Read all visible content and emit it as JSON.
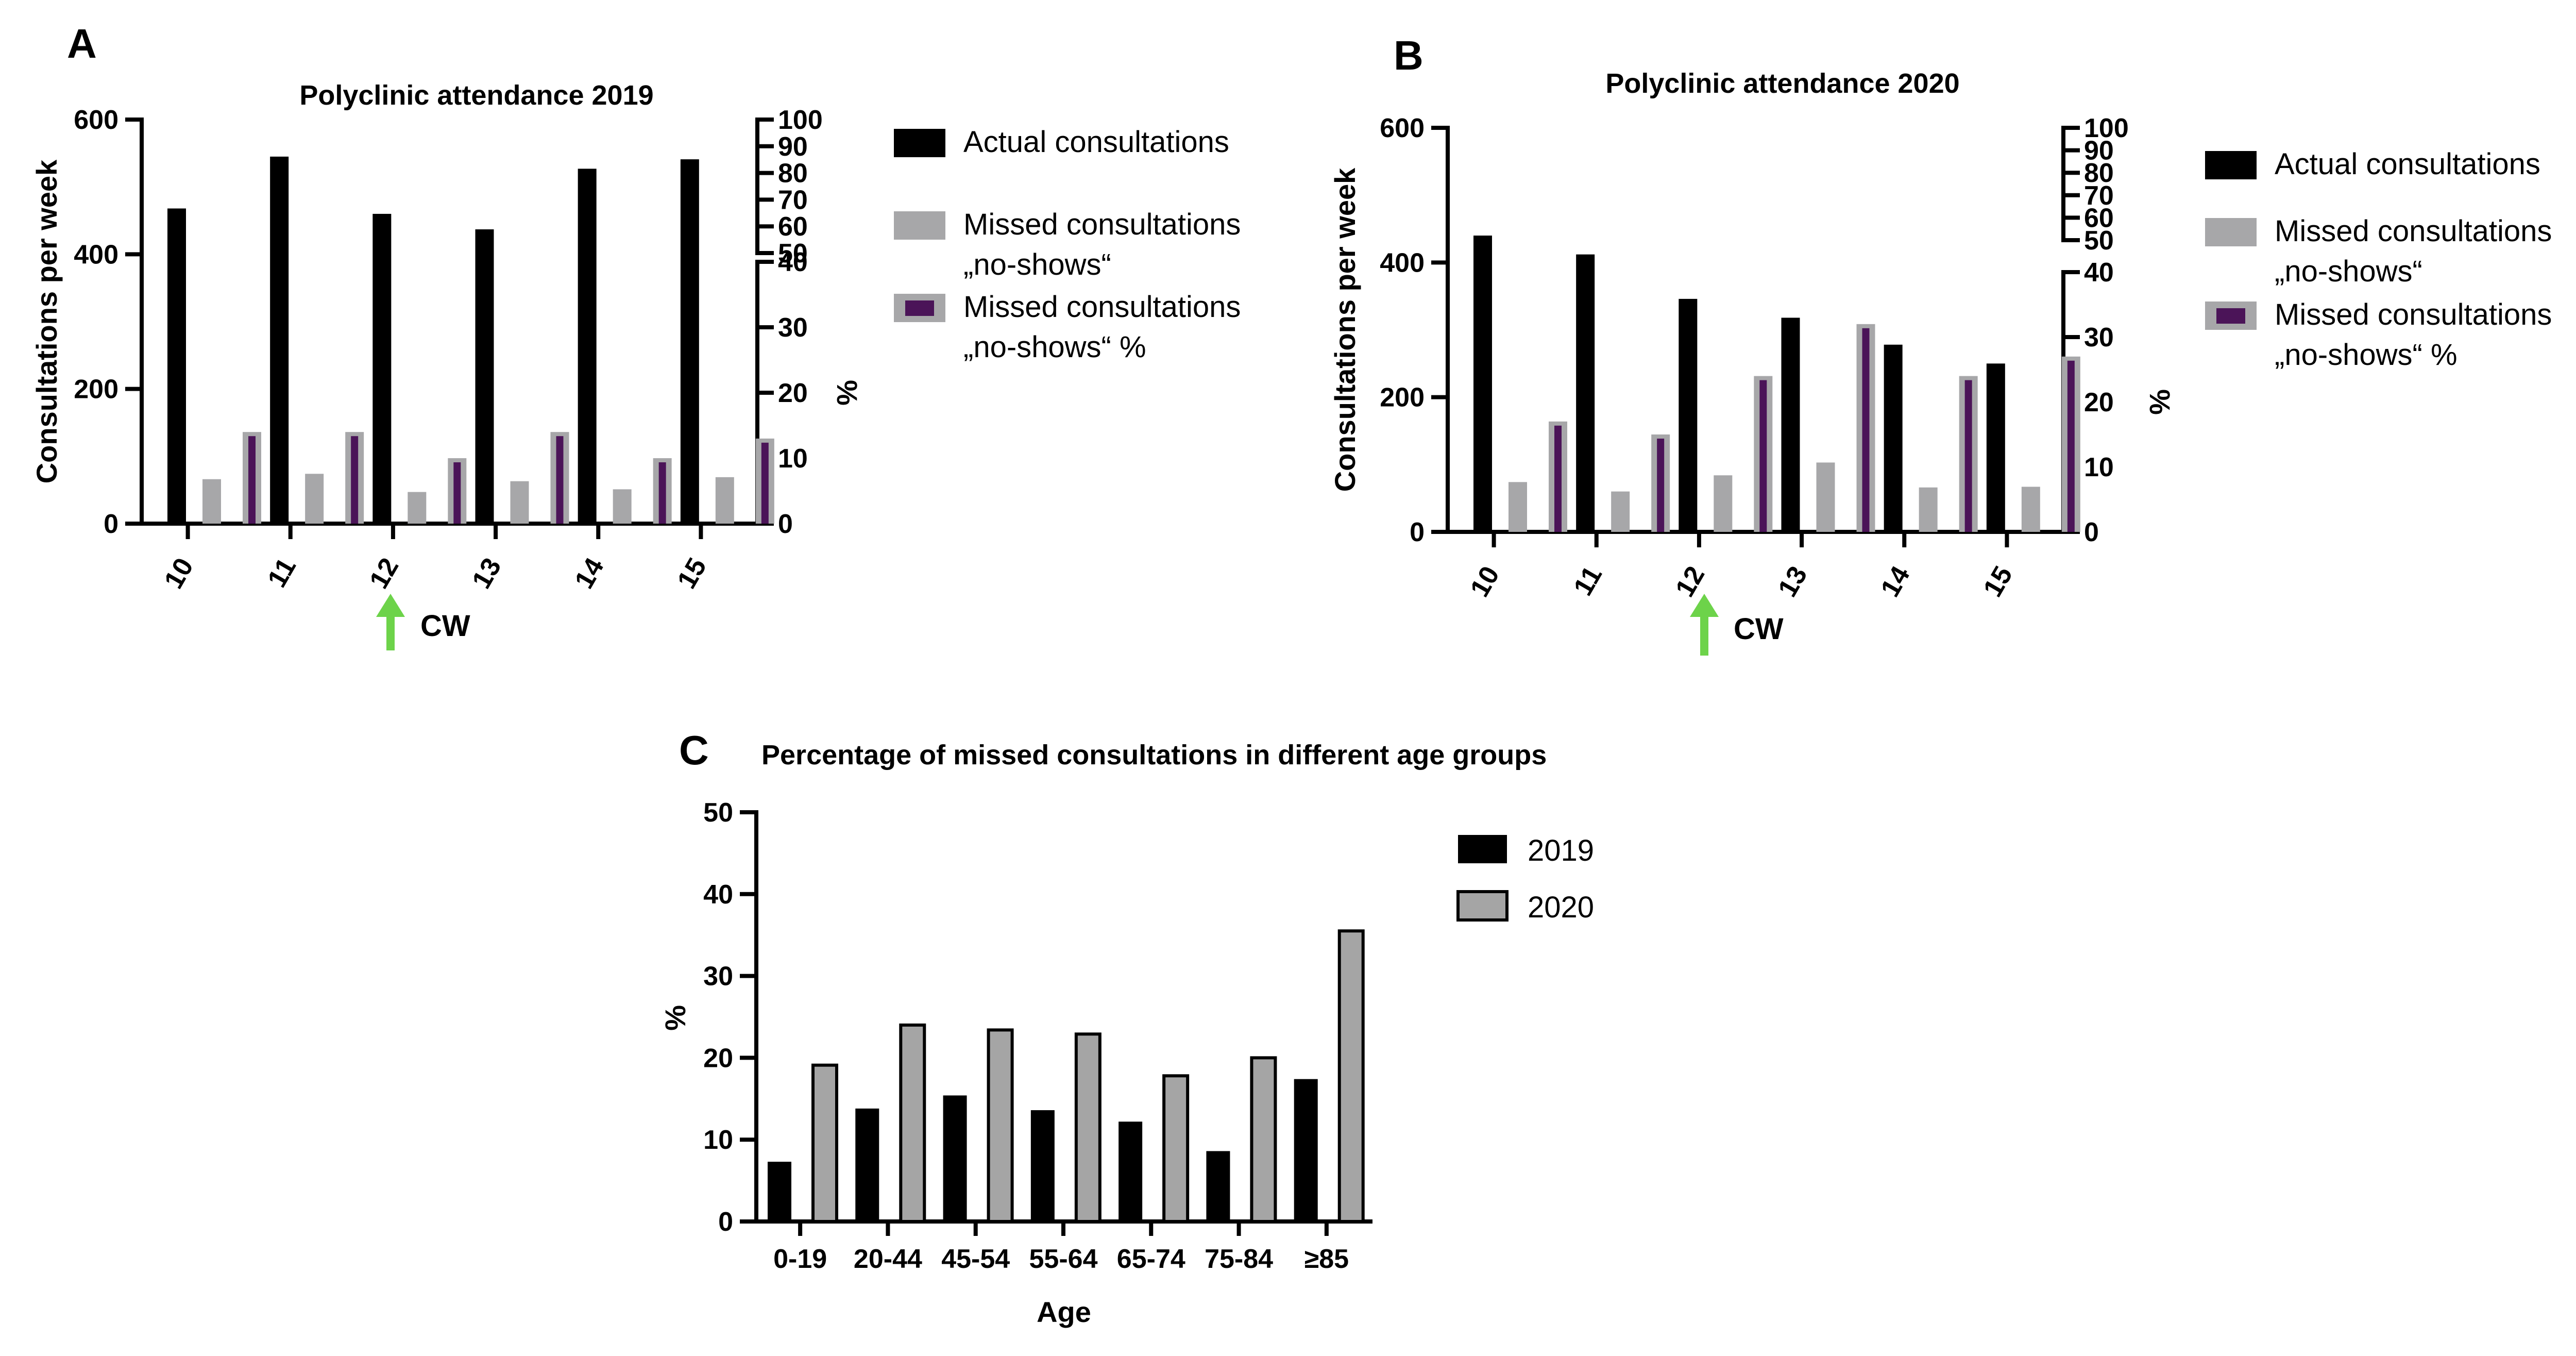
{
  "chart_data": [
    {
      "panel": "A",
      "type": "bar",
      "title": "Polyclinic attendance 2019",
      "xlabel": "",
      "ylabel": "Consultations per week",
      "y2label": "%",
      "categories": [
        "10",
        "11",
        "12",
        "13",
        "14",
        "15"
      ],
      "ylim": [
        0,
        600
      ],
      "yticks": [
        0,
        200,
        400,
        600
      ],
      "y2lim": [
        0,
        100
      ],
      "y2ticks_lower": [
        0,
        10,
        20,
        30,
        40
      ],
      "y2ticks_upper": [
        50,
        60,
        70,
        80,
        90,
        100
      ],
      "series": [
        {
          "name": "Actual consultations",
          "axis": "left",
          "color": "#000000",
          "values": [
            468,
            545,
            460,
            437,
            527,
            541
          ]
        },
        {
          "name": "Missed consultations „no-shows“",
          "axis": "left",
          "color": "#a7a7a9",
          "values": [
            66,
            74,
            47,
            63,
            51,
            69
          ]
        },
        {
          "name": "Missed consultations „no-shows“ %",
          "axis": "right",
          "color": "#4b1458",
          "values": [
            14,
            14,
            10,
            14,
            10,
            13
          ]
        }
      ],
      "legend": {
        "position": "right",
        "entries": [
          {
            "line1": "Actual consultations",
            "line2": ""
          },
          {
            "line1": "Missed consultations",
            "line2": "„no-shows“"
          },
          {
            "line1": "Missed consultations",
            "line2": "„no-shows“ %"
          }
        ]
      },
      "annotation": {
        "text": "CW",
        "at_category": "12"
      }
    },
    {
      "panel": "B",
      "type": "bar",
      "title": "Polyclinic attendance 2020",
      "xlabel": "",
      "ylabel": "Consultations per week",
      "y2label": "%",
      "categories": [
        "10",
        "11",
        "12",
        "13",
        "14",
        "15"
      ],
      "ylim": [
        0,
        600
      ],
      "yticks": [
        0,
        200,
        400,
        600
      ],
      "y2lim": [
        0,
        100
      ],
      "y2ticks_lower": [
        0,
        10,
        20,
        30,
        40
      ],
      "y2ticks_upper": [
        50,
        60,
        70,
        80,
        90,
        100
      ],
      "series": [
        {
          "name": "Actual consultations",
          "axis": "left",
          "color": "#000000",
          "values": [
            440,
            412,
            346,
            318,
            278,
            250
          ]
        },
        {
          "name": "Missed consultations „no-shows“",
          "axis": "left",
          "color": "#a7a7a9",
          "values": [
            74,
            60,
            84,
            103,
            66,
            67
          ]
        },
        {
          "name": "Missed consultations „no-shows“ %",
          "axis": "right",
          "color": "#4b1458",
          "values": [
            17,
            15,
            24,
            32,
            24,
            27
          ]
        }
      ],
      "legend": {
        "position": "right",
        "entries": [
          {
            "line1": "Actual consultations",
            "line2": ""
          },
          {
            "line1": "Missed consultations",
            "line2": "„no-shows“"
          },
          {
            "line1": "Missed consultations",
            "line2": "„no-shows“ %"
          }
        ]
      },
      "annotation": {
        "text": "CW",
        "at_category": "12"
      }
    },
    {
      "panel": "C",
      "type": "bar",
      "title": "Percentage of missed consultations in different age groups",
      "xlabel": "Age",
      "ylabel": "%",
      "categories": [
        "0-19",
        "20-44",
        "45-54",
        "55-64",
        "65-74",
        "75-84",
        "≥85"
      ],
      "ylim": [
        0,
        50
      ],
      "yticks": [
        0,
        10,
        20,
        30,
        40,
        50
      ],
      "series": [
        {
          "name": "2019",
          "color": "#000000",
          "values": [
            7.3,
            13.8,
            15.4,
            13.6,
            12.2,
            8.6,
            17.4
          ]
        },
        {
          "name": "2020",
          "color": "#a5a5a5",
          "values": [
            19.1,
            24.0,
            23.4,
            22.9,
            17.8,
            20.0,
            35.5
          ]
        }
      ],
      "legend": {
        "position": "right",
        "entries": [
          "2019",
          "2020"
        ]
      }
    }
  ]
}
